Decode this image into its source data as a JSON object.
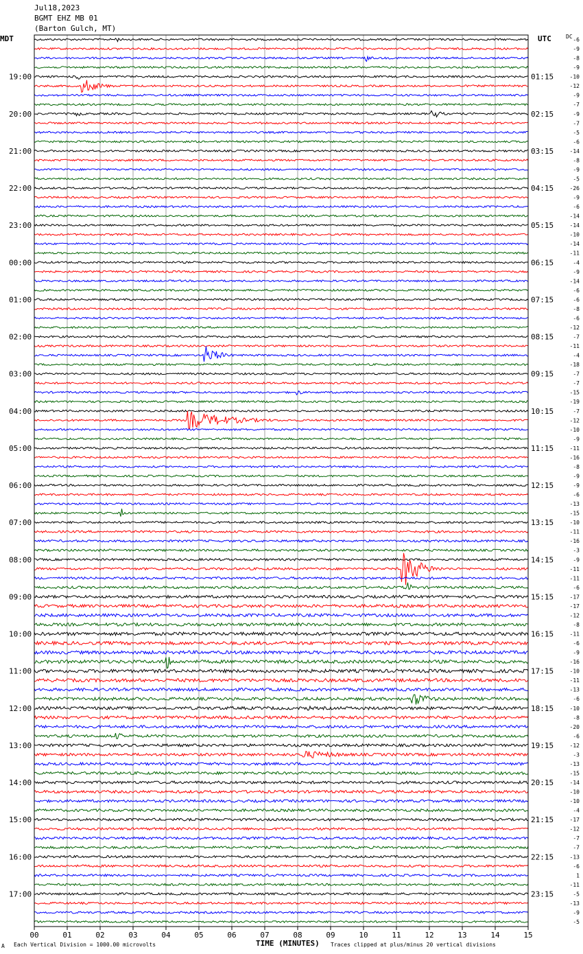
{
  "header": {
    "date": "Jul18,2023",
    "station": "BGMT EHZ MB 01",
    "location": "(Barton Gulch, MT)"
  },
  "left_zone": "MDT",
  "right_zone": "UTC",
  "dc_label": "DC",
  "footer": {
    "scale_note": "Each Vertical Division = 1000.00 microvolts",
    "clip_note": "Traces clipped at plus/minus 20 vertical divisions",
    "mark": "A"
  },
  "colors": {
    "trace_cycle": [
      "#000000",
      "#ff0000",
      "#0000ff",
      "#006400"
    ],
    "grid": "#a0a0a0",
    "frame": "#000000"
  },
  "chart_data": {
    "type": "seismogram",
    "xlabel": "TIME (MINUTES)",
    "x_ticks": [
      "00",
      "01",
      "02",
      "03",
      "04",
      "05",
      "06",
      "07",
      "08",
      "09",
      "10",
      "11",
      "12",
      "13",
      "14",
      "15"
    ],
    "xlim": [
      0,
      15
    ],
    "rows": 96,
    "traces_per_hour": 4,
    "left_hour_labels": [
      "19:00",
      "20:00",
      "21:00",
      "22:00",
      "23:00",
      "00:00",
      "01:00",
      "02:00",
      "03:00",
      "04:00",
      "05:00",
      "06:00",
      "07:00",
      "08:00",
      "09:00",
      "10:00",
      "11:00",
      "12:00",
      "13:00",
      "14:00",
      "15:00",
      "16:00",
      "17:00"
    ],
    "left_first_label_row": 4,
    "right_hour_labels": [
      "01:15",
      "02:15",
      "03:15",
      "04:15",
      "05:15",
      "06:15",
      "07:15",
      "08:15",
      "09:15",
      "10:15",
      "11:15",
      "12:15",
      "13:15",
      "14:15",
      "15:15",
      "16:15",
      "17:15",
      "18:15",
      "19:15",
      "20:15",
      "21:15",
      "22:15",
      "23:15"
    ],
    "right_first_label_row": 4,
    "dc_offsets": [
      -6,
      -9,
      -8,
      -9,
      -10,
      -12,
      -9,
      -7,
      -9,
      -7,
      -5,
      -6,
      -14,
      -8,
      -9,
      -5,
      -26,
      -9,
      -6,
      -14,
      -14,
      -10,
      -14,
      -11,
      -4,
      -9,
      -14,
      -6,
      -6,
      -8,
      -6,
      -12,
      -7,
      -11,
      -4,
      -18,
      -7,
      -7,
      -15,
      -19,
      -7,
      -12,
      -10,
      -9,
      -11,
      -16,
      -8,
      -9,
      -9,
      -6,
      -13,
      -15,
      -10,
      -11,
      -16,
      -3,
      -9,
      -11,
      -11,
      -6,
      -17,
      -17,
      -12,
      -8,
      -11,
      -6,
      -9,
      -16,
      -10,
      -11,
      -13,
      -6,
      -10,
      -8,
      -20,
      -6,
      -12,
      -3,
      -13,
      -15,
      -14,
      -10,
      -10,
      -4,
      -17,
      -12,
      -7,
      -7,
      -13,
      -6,
      1,
      -11,
      -5,
      -13,
      -9,
      -5
    ],
    "noise_amplitude": [
      1.4,
      1.4,
      1.4,
      1.4,
      1.4,
      1.4,
      1.4,
      1.4,
      1.4,
      1.4,
      1.4,
      1.4,
      1.4,
      1.4,
      1.4,
      1.4,
      1.4,
      1.4,
      1.4,
      1.4,
      1.4,
      1.4,
      1.4,
      1.4,
      1.4,
      1.4,
      1.4,
      1.4,
      1.4,
      1.4,
      1.4,
      1.4,
      1.4,
      1.4,
      1.4,
      1.4,
      1.4,
      1.4,
      1.4,
      1.4,
      1.4,
      1.4,
      1.4,
      1.4,
      1.4,
      1.4,
      1.4,
      1.4,
      1.4,
      1.4,
      1.4,
      1.4,
      1.5,
      1.6,
      1.6,
      1.6,
      1.6,
      1.7,
      1.7,
      1.8,
      2.0,
      2.2,
      2.2,
      2.2,
      2.4,
      2.4,
      2.4,
      2.4,
      2.4,
      2.4,
      2.2,
      2.2,
      2.2,
      2.2,
      2.0,
      2.0,
      2.0,
      2.0,
      2.0,
      2.0,
      2.0,
      2.0,
      1.9,
      1.9,
      1.8,
      1.8,
      1.8,
      1.8,
      1.7,
      1.7,
      1.6,
      1.6,
      1.6,
      1.5,
      1.5,
      1.4
    ],
    "events": [
      {
        "row": 5,
        "minute": 1.45,
        "amplitude": 12,
        "duration": 1.2
      },
      {
        "row": 4,
        "minute": 1.3,
        "amplitude": 6,
        "duration": 0.5
      },
      {
        "row": 8,
        "minute": 1.3,
        "amplitude": 5,
        "duration": 0.4
      },
      {
        "row": 8,
        "minute": 12.1,
        "amplitude": 8,
        "duration": 0.6
      },
      {
        "row": 34,
        "minute": 5.2,
        "amplitude": 14,
        "duration": 1.0
      },
      {
        "row": 38,
        "minute": 8.0,
        "amplitude": 4,
        "duration": 0.5
      },
      {
        "row": 41,
        "minute": 4.7,
        "amplitude": 14,
        "duration": 3.0
      },
      {
        "row": 51,
        "minute": 2.65,
        "amplitude": 8,
        "duration": 0.1
      },
      {
        "row": 57,
        "minute": 11.2,
        "amplitude": 28,
        "duration": 1.2
      },
      {
        "row": 59,
        "minute": 11.3,
        "amplitude": 10,
        "duration": 0.4
      },
      {
        "row": 67,
        "minute": 4.05,
        "amplitude": 22,
        "duration": 0.15
      },
      {
        "row": 71,
        "minute": 11.5,
        "amplitude": 11,
        "duration": 1.2
      },
      {
        "row": 72,
        "minute": 8.3,
        "amplitude": 4,
        "duration": 0.5
      },
      {
        "row": 75,
        "minute": 2.5,
        "amplitude": 5,
        "duration": 0.8
      },
      {
        "row": 77,
        "minute": 8.2,
        "amplitude": 6,
        "duration": 3.5
      },
      {
        "row": 0,
        "minute": 2.5,
        "amplitude": 4,
        "duration": 0.4
      },
      {
        "row": 2,
        "minute": 10.1,
        "amplitude": 5,
        "duration": 0.4
      }
    ]
  }
}
